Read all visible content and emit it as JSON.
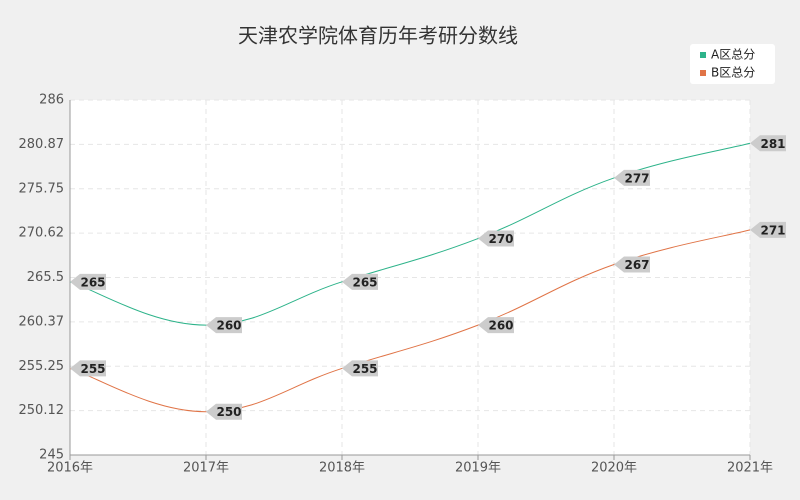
{
  "chart_data": {
    "type": "line",
    "title": "天津农学院体育历年考研分数线",
    "categories": [
      "2016年",
      "2017年",
      "2018年",
      "2019年",
      "2020年",
      "2021年"
    ],
    "series": [
      {
        "name": "A区总分",
        "color": "#2db38a",
        "values": [
          265,
          260,
          265,
          270,
          277,
          281
        ]
      },
      {
        "name": "B区总分",
        "color": "#e07447",
        "values": [
          255,
          250,
          255,
          260,
          267,
          271
        ]
      }
    ],
    "ylim": [
      245,
      286
    ],
    "yticks": [
      245,
      250.12,
      255.25,
      260.37,
      265.5,
      270.62,
      275.75,
      280.87,
      286
    ],
    "grid": true,
    "legend": "top-right"
  }
}
